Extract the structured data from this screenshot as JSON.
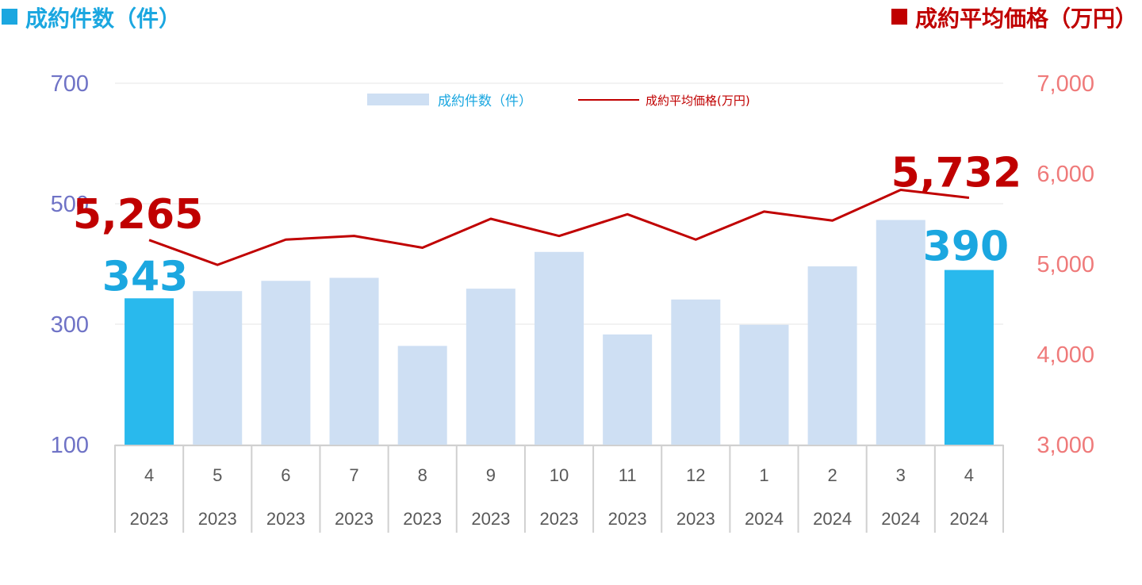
{
  "header": {
    "left_title": "成約件数（件）",
    "right_title": "成約平均価格（万円）"
  },
  "legend": {
    "bars": "成約件数（件）",
    "line": "成約平均価格(万円)"
  },
  "colors": {
    "bar": "#cedff3",
    "bar_highlight": "#29b9ed",
    "line": "#c00000",
    "left_axis": "#6f73c6",
    "right_axis": "#ef7a7a",
    "label_blue": "#1ba7e0",
    "label_red": "#c00000"
  },
  "chart_data": {
    "type": "bar",
    "categories": [
      "4",
      "5",
      "6",
      "7",
      "8",
      "9",
      "10",
      "11",
      "12",
      "1",
      "2",
      "3",
      "4"
    ],
    "years": [
      "2023",
      "2023",
      "2023",
      "2023",
      "2023",
      "2023",
      "2023",
      "2023",
      "2023",
      "2024",
      "2024",
      "2024",
      "2024"
    ],
    "series": [
      {
        "name": "成約件数（件）",
        "type": "bar",
        "axis": "left",
        "values": [
          343,
          355,
          372,
          377,
          264,
          359,
          420,
          283,
          341,
          299,
          396,
          473,
          390
        ],
        "highlight": [
          0,
          12
        ]
      },
      {
        "name": "成約平均価格(万円)",
        "type": "line",
        "axis": "right",
        "values": [
          5265,
          4990,
          5270,
          5310,
          5180,
          5500,
          5310,
          5550,
          5270,
          5580,
          5480,
          5820,
          5732
        ]
      }
    ],
    "left_axis": {
      "ylim": [
        100,
        700
      ],
      "ticks": [
        "100",
        "300",
        "500",
        "700"
      ]
    },
    "right_axis": {
      "ylim": [
        3000,
        7000
      ],
      "ticks": [
        "3,000",
        "4,000",
        "5,000",
        "6,000",
        "7,000"
      ]
    },
    "annotations": {
      "first_count": "343",
      "last_count": "390",
      "first_price": "5,265",
      "last_price": "5,732"
    },
    "grid": true,
    "legend_position": "top-center"
  }
}
